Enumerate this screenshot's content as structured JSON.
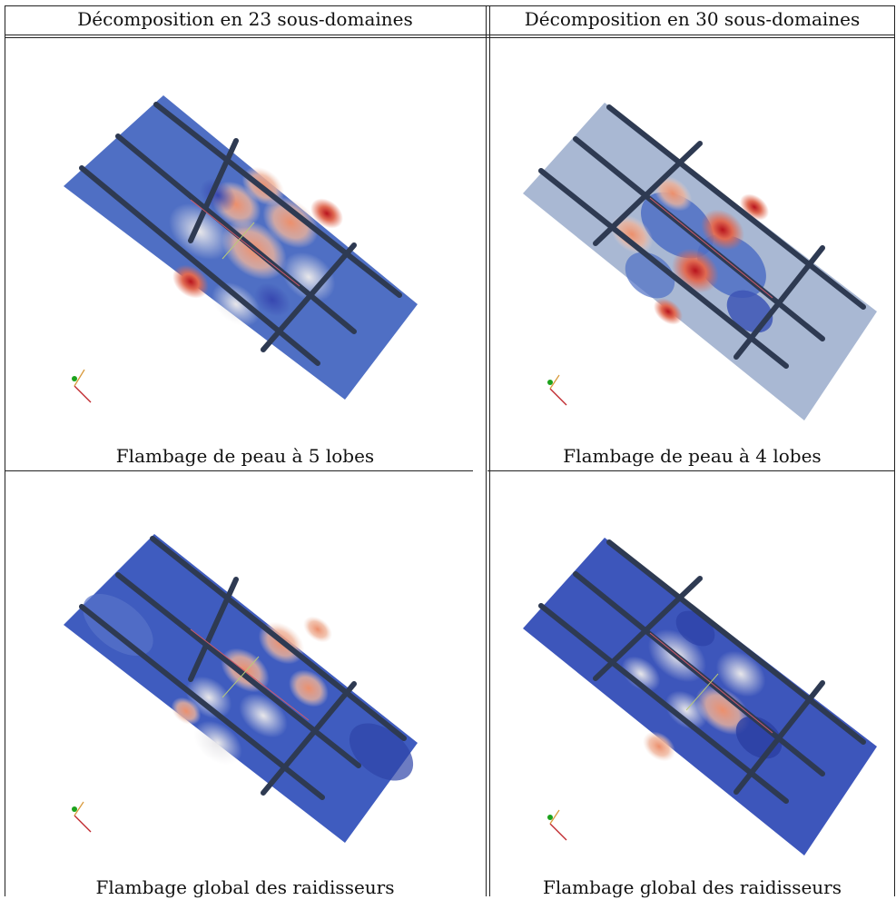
{
  "headers": [
    "Décomposition en 23 sous-domaines",
    "Décomposition en 30 sous-domaines"
  ],
  "captions": {
    "row1": [
      "Flambage de peau à 5 lobes",
      "Flambage de peau à 4 lobes"
    ],
    "row2": [
      "Flambage global des raidisseurs",
      "Flambage global des raidisseurs"
    ]
  },
  "colors": {
    "panel_blue": "#4f6fc4",
    "panel_blue_dark": "#3853b4",
    "panel_grey": "#a9b8d3",
    "stiffener": "#2e3a52",
    "red": "#c0272d",
    "orange": "#e88a66",
    "light": "#e7e7ea"
  }
}
